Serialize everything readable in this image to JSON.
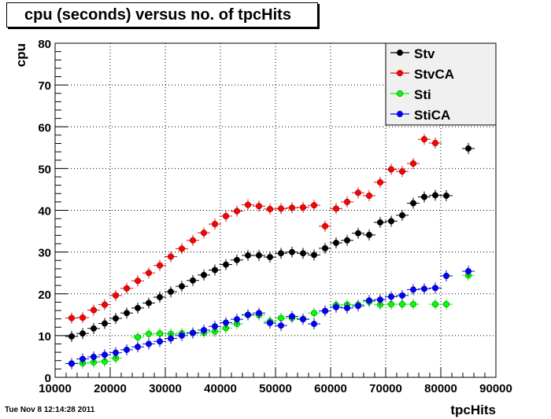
{
  "chart_data": {
    "type": "scatter",
    "title": "cpu (seconds) versus no. of tpcHits",
    "xlabel": "tpcHits",
    "ylabel": "cpu",
    "xlim": [
      10000,
      90000
    ],
    "ylim": [
      0,
      80
    ],
    "x_ticks": [
      "10000",
      "20000",
      "30000",
      "40000",
      "50000",
      "60000",
      "70000",
      "80000",
      "90000"
    ],
    "y_ticks": [
      "0",
      "10",
      "20",
      "30",
      "40",
      "50",
      "60",
      "70",
      "80"
    ],
    "grid": true,
    "legend_position": "top-right",
    "series": [
      {
        "name": "Stv",
        "color": "#000000",
        "x": [
          13000,
          15000,
          17000,
          19000,
          21000,
          23000,
          25000,
          27000,
          29000,
          31000,
          33000,
          35000,
          37000,
          39000,
          41000,
          43000,
          45000,
          47000,
          49000,
          51000,
          53000,
          55000,
          57000,
          59000,
          61000,
          63000,
          65000,
          67000,
          69000,
          71000,
          73000,
          75000,
          77000,
          79000,
          81000,
          85000
        ],
        "y": [
          9.8,
          10.5,
          11.7,
          12.9,
          14.1,
          15.4,
          16.6,
          17.8,
          19.2,
          20.5,
          21.8,
          23.2,
          24.5,
          25.7,
          27.0,
          28.1,
          29.2,
          29.2,
          28.8,
          29.7,
          30.0,
          29.7,
          29.3,
          30.9,
          32.2,
          32.8,
          34.5,
          34.1,
          37.1,
          37.4,
          38.8,
          41.7,
          43.2,
          43.6,
          43.5,
          54.8
        ]
      },
      {
        "name": "StvCA",
        "color": "#ff0000",
        "x": [
          13000,
          15000,
          17000,
          19000,
          21000,
          23000,
          25000,
          27000,
          29000,
          31000,
          33000,
          35000,
          37000,
          39000,
          41000,
          43000,
          45000,
          47000,
          49000,
          51000,
          53000,
          55000,
          57000,
          59000,
          61000,
          63000,
          65000,
          67000,
          69000,
          71000,
          73000,
          75000,
          77000,
          79000
        ],
        "y": [
          14.2,
          14.3,
          16.1,
          17.4,
          19.6,
          21.3,
          23.1,
          25.0,
          26.8,
          28.9,
          30.8,
          32.8,
          34.6,
          36.7,
          38.6,
          39.8,
          41.3,
          41.0,
          40.3,
          40.4,
          40.6,
          40.7,
          41.2,
          36.2,
          40.4,
          42.0,
          44.2,
          43.5,
          46.7,
          49.8,
          49.3,
          51.2,
          57.0,
          56.1
        ]
      },
      {
        "name": "Sti",
        "color": "#00ff00",
        "x": [
          13000,
          15000,
          17000,
          19000,
          21000,
          25000,
          27000,
          29000,
          31000,
          33000,
          35000,
          37000,
          39000,
          41000,
          43000,
          45000,
          47000,
          49000,
          51000,
          53000,
          55000,
          57000,
          59000,
          61000,
          63000,
          65000,
          67000,
          69000,
          71000,
          73000,
          75000,
          79000,
          81000,
          85000
        ],
        "y": [
          3.3,
          3.4,
          3.6,
          3.8,
          4.6,
          9.6,
          10.4,
          10.5,
          10.4,
          10.5,
          10.7,
          10.7,
          11.0,
          11.8,
          12.8,
          14.9,
          14.9,
          13.4,
          14.2,
          14.2,
          14.0,
          15.4,
          15.9,
          17.3,
          17.4,
          17.4,
          18.1,
          17.4,
          17.5,
          17.5,
          17.5,
          17.5,
          17.5,
          24.4
        ]
      },
      {
        "name": "StiCA",
        "color": "#0000ff",
        "x": [
          13000,
          15000,
          17000,
          19000,
          21000,
          23000,
          25000,
          27000,
          29000,
          31000,
          33000,
          35000,
          37000,
          39000,
          41000,
          43000,
          45000,
          47000,
          49000,
          51000,
          53000,
          55000,
          57000,
          59000,
          61000,
          63000,
          65000,
          67000,
          69000,
          71000,
          73000,
          75000,
          77000,
          79000,
          81000,
          85000
        ],
        "y": [
          3.3,
          4.4,
          4.9,
          5.4,
          5.9,
          6.6,
          7.3,
          8.0,
          8.6,
          9.3,
          10.0,
          10.6,
          11.3,
          12.2,
          13.1,
          13.9,
          15.0,
          15.4,
          13.0,
          12.4,
          14.6,
          13.9,
          12.8,
          15.9,
          16.8,
          16.6,
          17.1,
          18.4,
          18.6,
          19.3,
          19.6,
          21.0,
          21.2,
          21.4,
          24.3,
          25.4
        ]
      }
    ]
  },
  "timestamp": "Tue Nov  8 12:14:28 2011"
}
